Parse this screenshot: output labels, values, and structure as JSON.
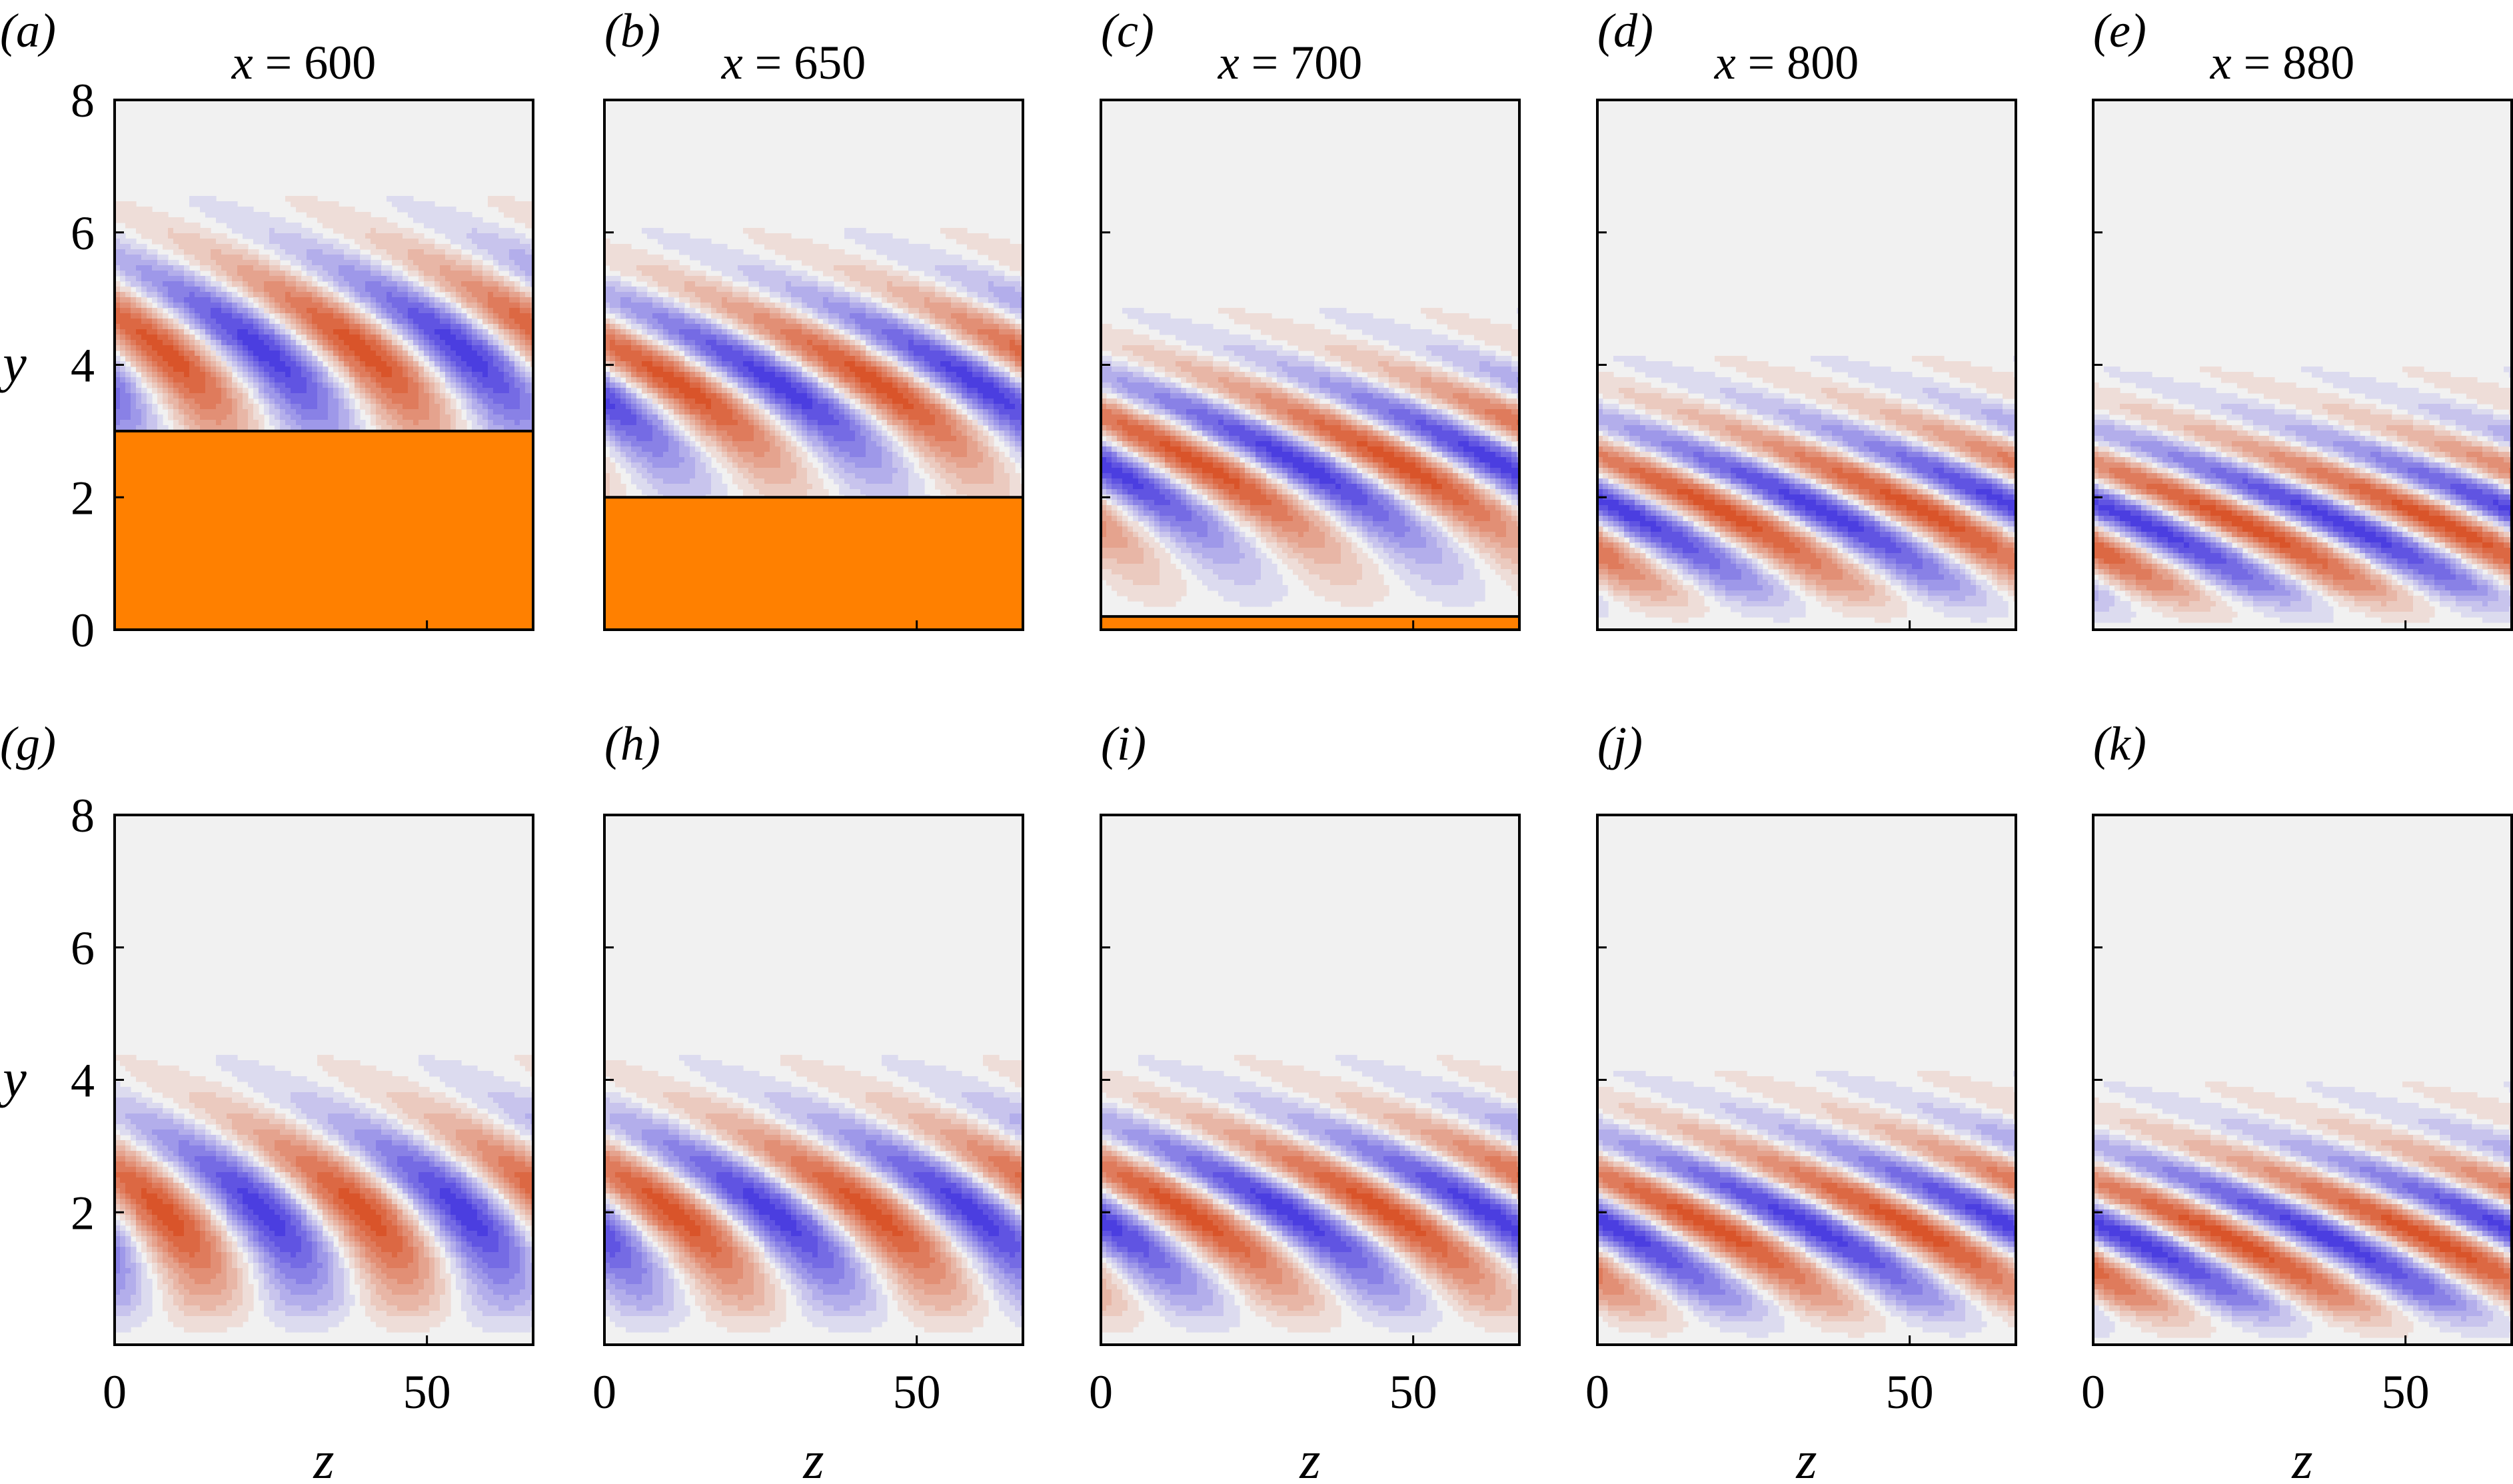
{
  "figure": {
    "y_axis_label": "y",
    "z_axis_label": "z",
    "y_ticks": [
      "0",
      "2",
      "4",
      "6",
      "8"
    ],
    "y_ticks_bottom": [
      "2",
      "4",
      "6",
      "8"
    ],
    "z_ticks": [
      "0",
      "50"
    ]
  },
  "colors": {
    "background_field": "#f1f1f1",
    "positive": "#d9542a",
    "negative": "#4b3ee0",
    "wall_block": "#ff8000",
    "frame": "#000000"
  },
  "chart_data": [
    {
      "type": "heatmap",
      "panel": "(a)",
      "title": "x = 600",
      "xlabel": "z",
      "ylabel": "y",
      "xlim": [
        0,
        67
      ],
      "ylim": [
        0,
        8
      ],
      "block_height": 3.0,
      "wavelength": 32,
      "center_y": 4.2,
      "angle": 0.55,
      "wave_x_offset": 0
    },
    {
      "type": "heatmap",
      "panel": "(b)",
      "title": "x = 650",
      "xlabel": "z",
      "ylabel": "",
      "xlim": [
        0,
        67
      ],
      "ylim": [
        0,
        8
      ],
      "block_height": 2.0,
      "wavelength": 32,
      "center_y": 3.7,
      "angle": 0.75,
      "wave_x_offset": 4
    },
    {
      "type": "heatmap",
      "panel": "(c)",
      "title": "x = 700",
      "xlabel": "z",
      "ylabel": "",
      "xlim": [
        0,
        67
      ],
      "ylim": [
        0,
        8
      ],
      "block_height": 0.2,
      "wavelength": 32,
      "center_y": 2.5,
      "angle": 0.9,
      "wave_x_offset": 8
    },
    {
      "type": "heatmap",
      "panel": "(d)",
      "title": "x = 800",
      "xlabel": "z",
      "ylabel": "",
      "xlim": [
        0,
        67
      ],
      "ylim": [
        0,
        8
      ],
      "block_height": 0,
      "wavelength": 32,
      "center_y": 1.8,
      "angle": 1.0,
      "wave_x_offset": 12
    },
    {
      "type": "heatmap",
      "panel": "(e)",
      "title": "x = 880",
      "xlabel": "z",
      "ylabel": "",
      "xlim": [
        0,
        67
      ],
      "ylim": [
        0,
        8
      ],
      "block_height": 0,
      "wavelength": 32,
      "center_y": 1.6,
      "angle": 1.1,
      "wave_x_offset": 16
    },
    {
      "type": "heatmap",
      "panel": "(g)",
      "title": "",
      "xlabel": "z",
      "ylabel": "y",
      "xlim": [
        0,
        67
      ],
      "ylim": [
        0,
        8
      ],
      "block_height": 0,
      "wavelength": 32,
      "center_y": 2.0,
      "angle": 0.45,
      "wave_x_offset": 0
    },
    {
      "type": "heatmap",
      "panel": "(h)",
      "title": "",
      "xlabel": "z",
      "ylabel": "",
      "xlim": [
        0,
        67
      ],
      "ylim": [
        0,
        8
      ],
      "block_height": 0,
      "wavelength": 32,
      "center_y": 2.0,
      "angle": 0.6,
      "wave_x_offset": 3
    },
    {
      "type": "heatmap",
      "panel": "(i)",
      "title": "",
      "xlabel": "z",
      "ylabel": "",
      "xlim": [
        0,
        67
      ],
      "ylim": [
        0,
        8
      ],
      "block_height": 0,
      "wavelength": 32,
      "center_y": 2.0,
      "angle": 0.8,
      "wave_x_offset": 6
    },
    {
      "type": "heatmap",
      "panel": "(j)",
      "title": "",
      "xlabel": "z",
      "ylabel": "",
      "xlim": [
        0,
        67
      ],
      "ylim": [
        0,
        8
      ],
      "block_height": 0,
      "wavelength": 32,
      "center_y": 1.8,
      "angle": 0.95,
      "wave_x_offset": 10
    },
    {
      "type": "heatmap",
      "panel": "(k)",
      "title": "",
      "xlabel": "z",
      "ylabel": "",
      "xlim": [
        0,
        67
      ],
      "ylim": [
        0,
        8
      ],
      "block_height": 0,
      "wavelength": 32,
      "center_y": 1.6,
      "angle": 1.05,
      "wave_x_offset": 14
    }
  ]
}
